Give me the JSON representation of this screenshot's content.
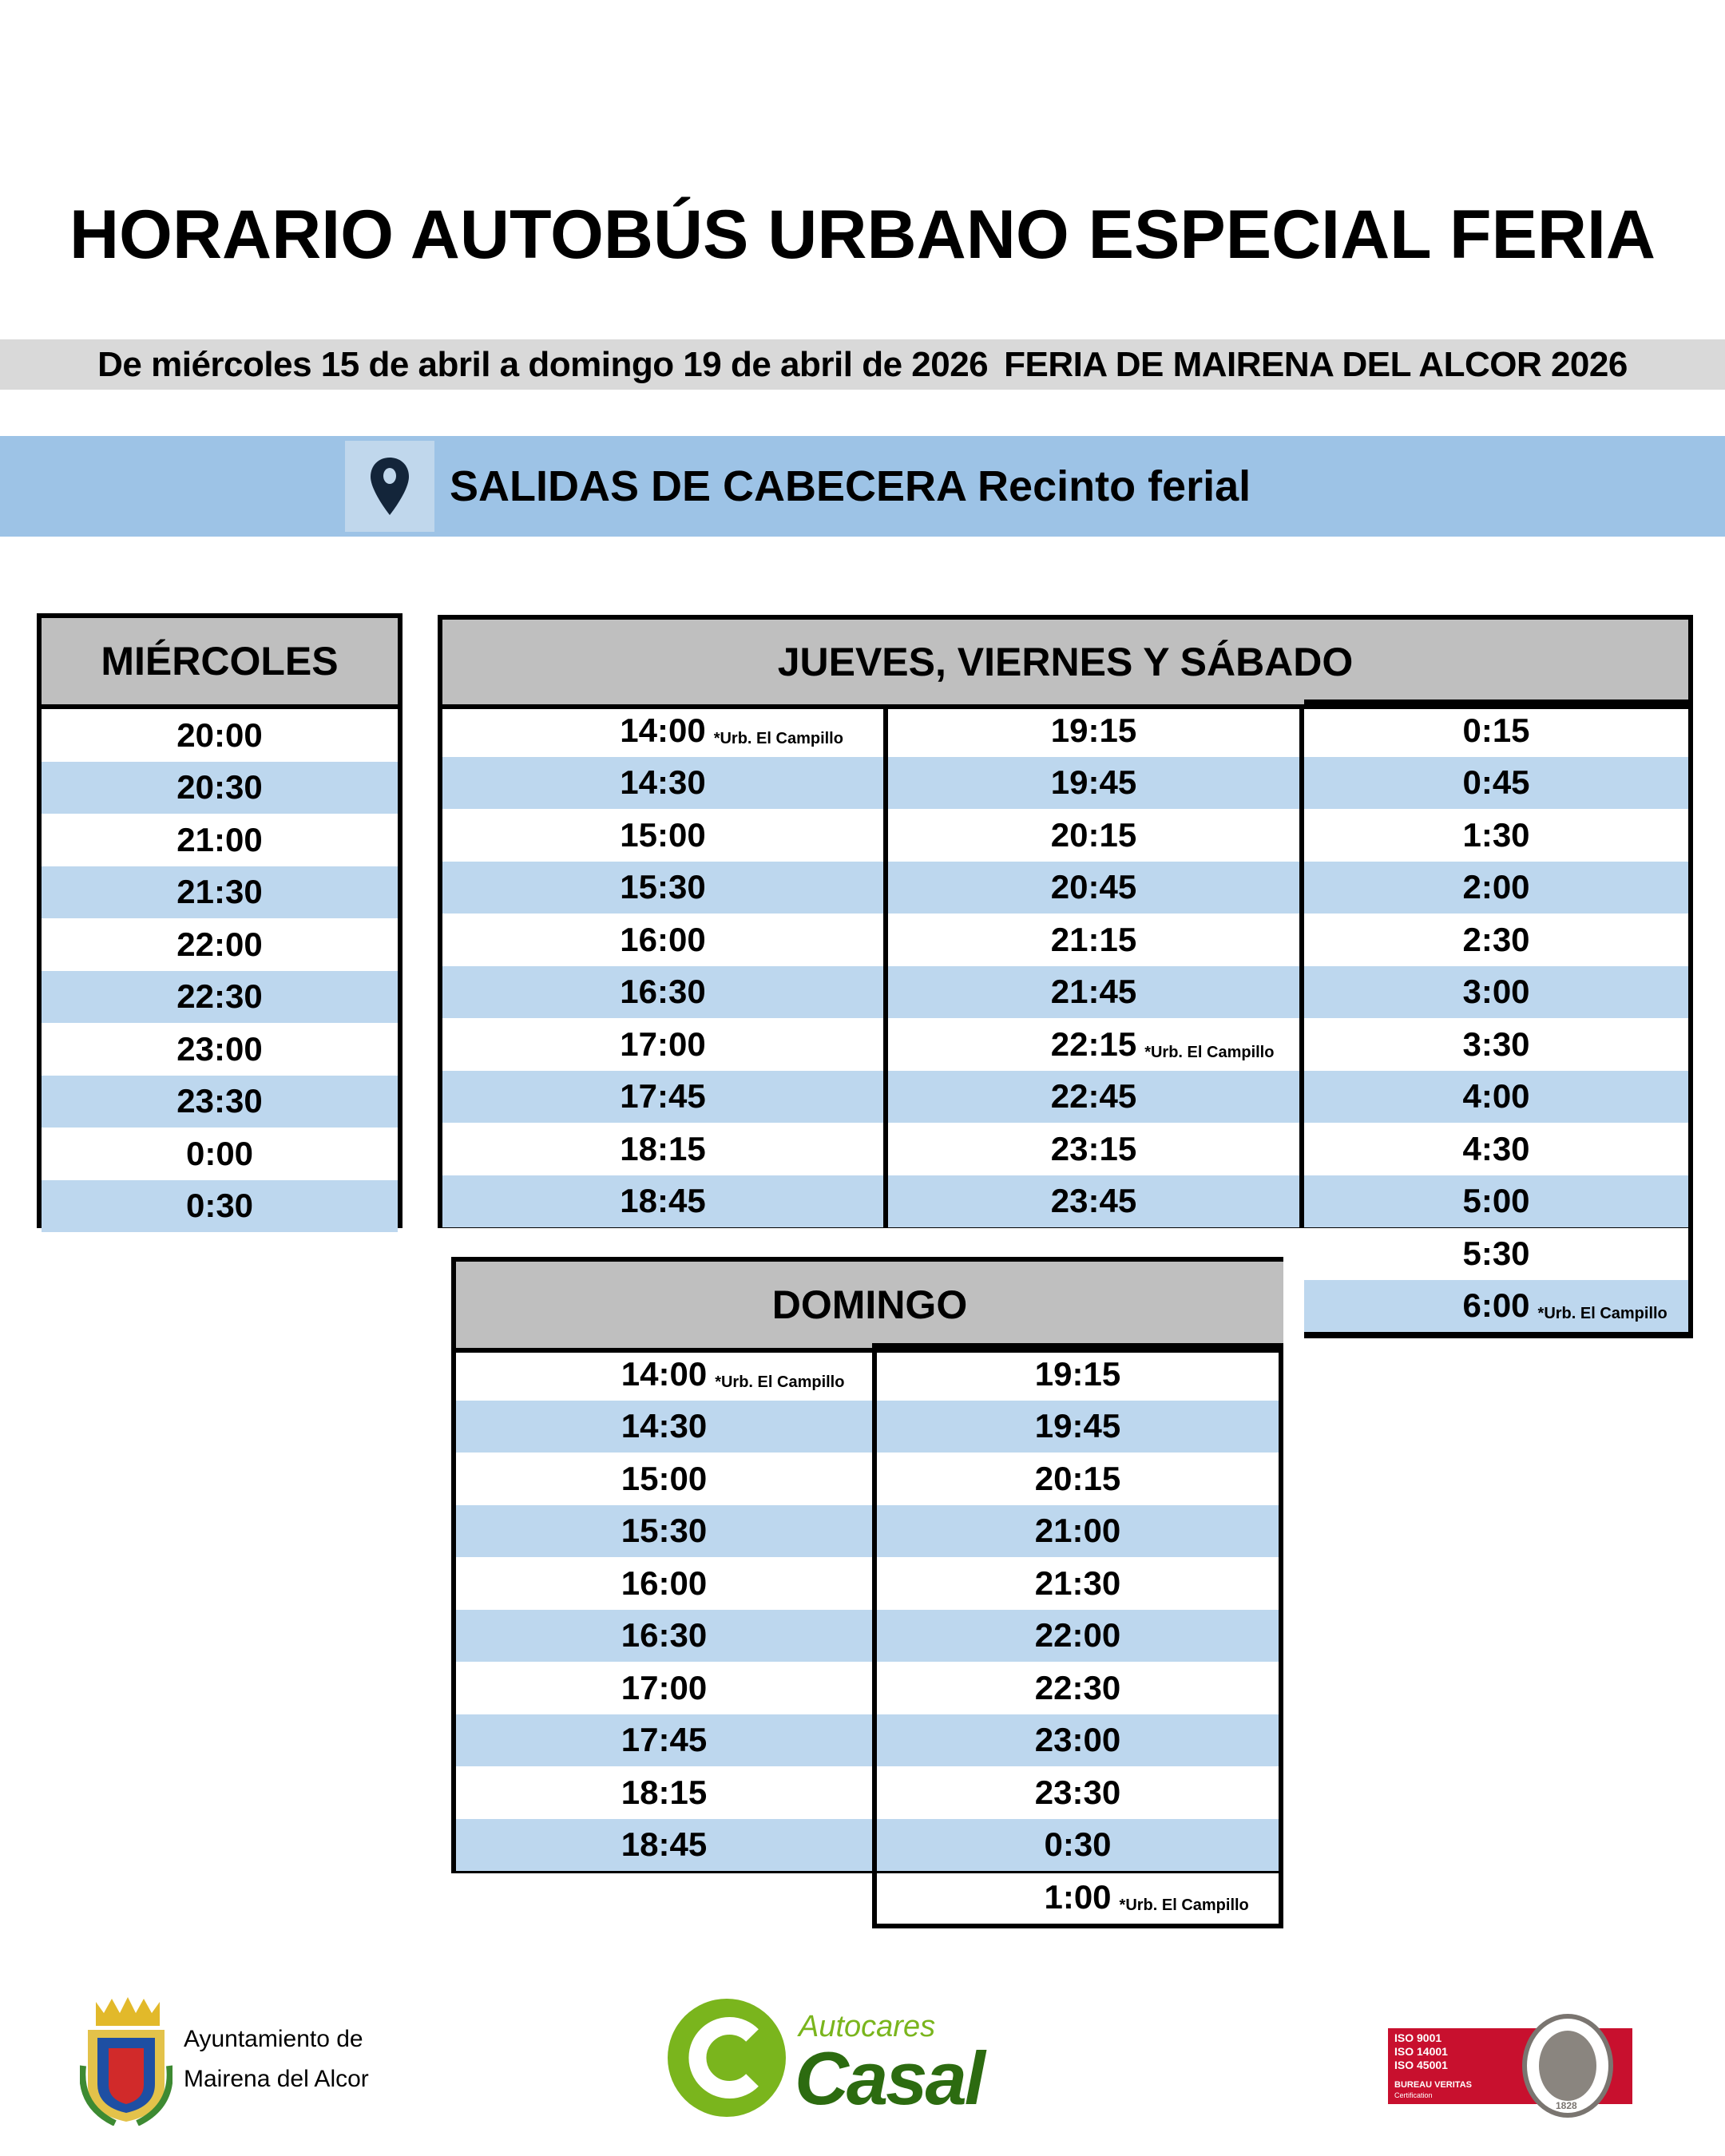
{
  "title": "HORARIO AUTOBÚS URBANO ESPECIAL FERIA",
  "date_range": "De miércoles 15 de abril a domingo 19 de abril de 2026",
  "event": "FERIA DE MAIRENA DEL ALCOR 2026",
  "stop": {
    "icon": "map-pin-icon",
    "label": "SALIDAS DE CABECERA Recinto ferial"
  },
  "colors": {
    "header_gray": "#bfbfbf",
    "row_blue": "#bdd7ee",
    "band_blue": "#9dc3e6",
    "band_gray": "#d9d9d9"
  },
  "miercoles": {
    "header": "MIÉRCOLES",
    "columns": [
      [
        {
          "t": "20:00"
        },
        {
          "t": "20:30"
        },
        {
          "t": "21:00"
        },
        {
          "t": "21:30"
        },
        {
          "t": "22:00"
        },
        {
          "t": "22:30"
        },
        {
          "t": "23:00"
        },
        {
          "t": "23:30"
        },
        {
          "t": "0:00"
        },
        {
          "t": "0:30"
        }
      ]
    ]
  },
  "jueves_sabado": {
    "header": "JUEVES, VIERNES Y SÁBADO",
    "columns": [
      [
        {
          "t": "14:00",
          "note": "*Urb. El Campillo"
        },
        {
          "t": "14:30"
        },
        {
          "t": "15:00"
        },
        {
          "t": "15:30"
        },
        {
          "t": "16:00"
        },
        {
          "t": "16:30"
        },
        {
          "t": "17:00"
        },
        {
          "t": "17:45"
        },
        {
          "t": "18:15"
        },
        {
          "t": "18:45"
        }
      ],
      [
        {
          "t": "19:15"
        },
        {
          "t": "19:45"
        },
        {
          "t": "20:15"
        },
        {
          "t": "20:45"
        },
        {
          "t": "21:15"
        },
        {
          "t": "21:45"
        },
        {
          "t": "22:15",
          "note": "*Urb. El Campillo"
        },
        {
          "t": "22:45"
        },
        {
          "t": "23:15"
        },
        {
          "t": "23:45"
        }
      ],
      [
        {
          "t": "0:15"
        },
        {
          "t": "0:45"
        },
        {
          "t": "1:30"
        },
        {
          "t": "2:00"
        },
        {
          "t": "2:30"
        },
        {
          "t": "3:00"
        },
        {
          "t": "3:30"
        },
        {
          "t": "4:00"
        },
        {
          "t": "4:30"
        },
        {
          "t": "5:00"
        },
        {
          "t": "5:30"
        },
        {
          "t": "6:00",
          "note": "*Urb. El Campillo"
        }
      ]
    ]
  },
  "domingo": {
    "header": "DOMINGO",
    "columns": [
      [
        {
          "t": "14:00",
          "note": "*Urb. El Campillo"
        },
        {
          "t": "14:30"
        },
        {
          "t": "15:00"
        },
        {
          "t": "15:30"
        },
        {
          "t": "16:00"
        },
        {
          "t": "16:30"
        },
        {
          "t": "17:00"
        },
        {
          "t": "17:45"
        },
        {
          "t": "18:15"
        },
        {
          "t": "18:45"
        }
      ],
      [
        {
          "t": "19:15"
        },
        {
          "t": "19:45"
        },
        {
          "t": "20:15"
        },
        {
          "t": "21:00"
        },
        {
          "t": "21:30"
        },
        {
          "t": "22:00"
        },
        {
          "t": "22:30"
        },
        {
          "t": "23:00"
        },
        {
          "t": "23:30"
        },
        {
          "t": "0:30"
        },
        {
          "t": "1:00",
          "note": "*Urb. El Campillo"
        }
      ]
    ]
  },
  "footer": {
    "ayuntamiento_line1": "Ayuntamiento de",
    "ayuntamiento_line2": "Mairena del Alcor",
    "casal_small": "Autocares",
    "casal_big": "Casal",
    "iso_lines": [
      "ISO 9001",
      "ISO 14001",
      "ISO 45001"
    ],
    "bv_name": "BUREAU VERITAS",
    "bv_sub": "Certification",
    "bv_year": "1828"
  }
}
